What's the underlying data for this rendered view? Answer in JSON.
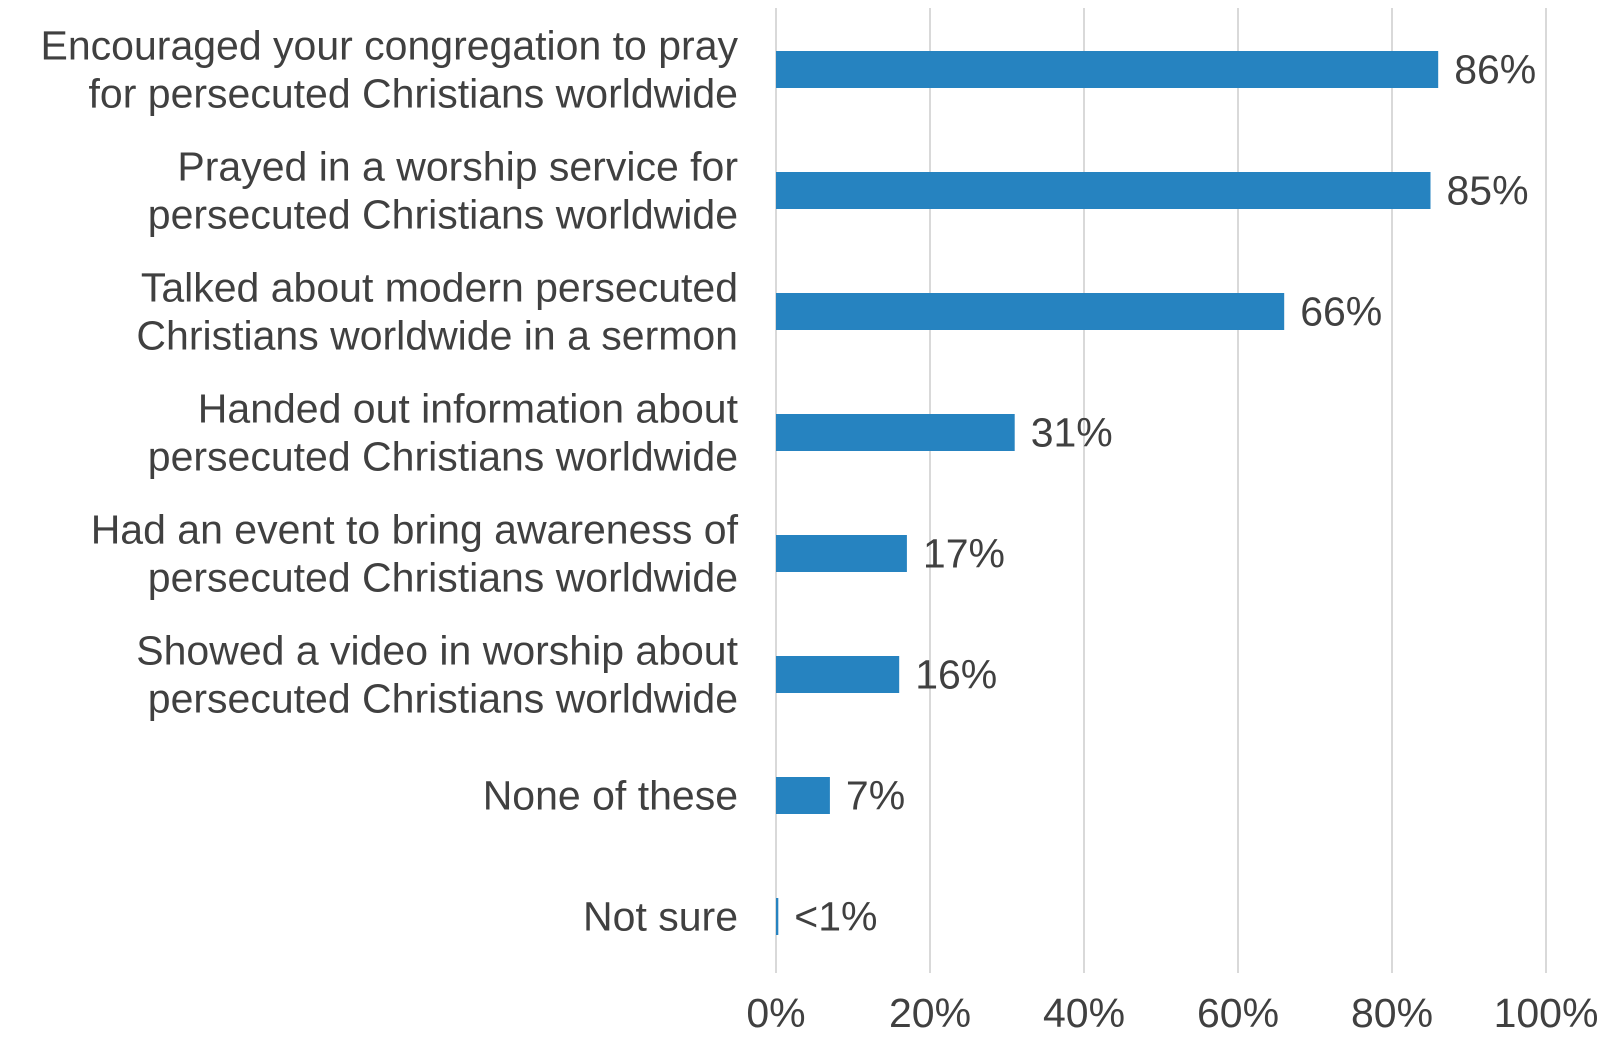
{
  "chart_data": {
    "type": "bar",
    "orientation": "horizontal",
    "title": "",
    "xlabel": "",
    "ylabel": "",
    "categories": [
      [
        "Encouraged your congregation to pray",
        "for persecuted Christians worldwide"
      ],
      [
        "Prayed in a worship service for",
        "persecuted Christians worldwide"
      ],
      [
        "Talked about modern persecuted",
        "Christians worldwide in a sermon"
      ],
      [
        "Handed out information about",
        "persecuted Christians worldwide"
      ],
      [
        "Had an event to bring awareness of",
        "persecuted Christians worldwide"
      ],
      [
        "Showed a video in worship about",
        "persecuted Christians worldwide"
      ],
      [
        "None of these"
      ],
      [
        "Not sure"
      ]
    ],
    "values": [
      86,
      85,
      66,
      31,
      17,
      16,
      7,
      0.3
    ],
    "value_labels": [
      "86%",
      "85%",
      "66%",
      "31%",
      "17%",
      "16%",
      "7%",
      "<1%"
    ],
    "xlim": [
      0,
      100
    ],
    "ticks": [
      0,
      20,
      40,
      60,
      80,
      100
    ],
    "tick_labels": [
      "0%",
      "20%",
      "40%",
      "60%",
      "80%",
      "100%"
    ],
    "grid": true,
    "legend": "none",
    "bar_color": "#2683c0",
    "gridline_color": "#d9d9d9",
    "text_color": "#404040"
  }
}
